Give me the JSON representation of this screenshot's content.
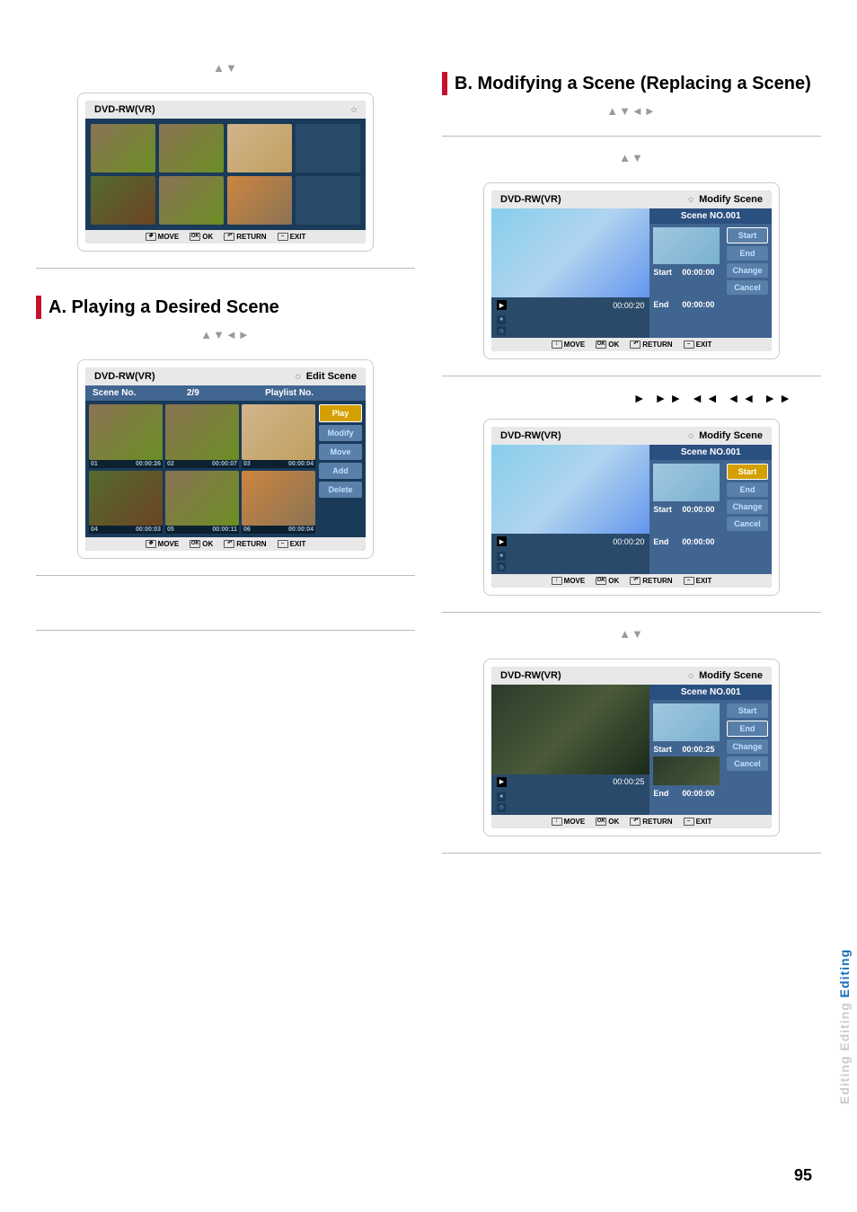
{
  "left": {
    "arrows1": "▲▼",
    "sectionA_title": "A. Playing a Desired Scene",
    "arrows2": "▲▼◄►"
  },
  "right": {
    "sectionB_title": "B. Modifying a Scene (Replacing a Scene)",
    "arrows1": "▲▼◄►",
    "arrows2": "▲▼",
    "transport": "►  ►►  ◄◄ ◄◄  ►►",
    "arrows3": "▲▼"
  },
  "footer_buttons": {
    "move": "MOVE",
    "ok": "OK",
    "return": "RETURN",
    "exit": "EXIT"
  },
  "box1": {
    "title": "DVD-RW(VR)"
  },
  "box2": {
    "title": "DVD-RW(VR)",
    "right_title": "Edit Scene",
    "scene_no_label": "Scene No.",
    "count": "2/9",
    "playlist_label": "Playlist No.",
    "cells": [
      {
        "n": "01",
        "t": "00:00:26"
      },
      {
        "n": "02",
        "t": "00:00:07"
      },
      {
        "n": "03",
        "t": "00:00:04"
      },
      {
        "n": "04",
        "t": "00:00:03"
      },
      {
        "n": "05",
        "t": "00:00:11"
      },
      {
        "n": "06",
        "t": "00:00:04"
      }
    ],
    "actions": [
      "Play",
      "Modify",
      "Move",
      "Add",
      "Delete"
    ]
  },
  "modify": {
    "title": "DVD-RW(VR)",
    "right_title": "Modify Scene",
    "scene_no": "Scene NO.001",
    "start_label": "Start",
    "end_label": "End",
    "buttons": [
      "Start",
      "End",
      "Change",
      "Cancel"
    ]
  },
  "box3": {
    "time_main": "00:00:20",
    "start_t": "00:00:00",
    "end_t": "00:00:00"
  },
  "box4": {
    "time_main": "00:00:20",
    "start_t": "00:00:00",
    "end_t": "00:00:00"
  },
  "box5": {
    "time_main": "00:00:25",
    "start_t": "00:00:25",
    "end_t": "00:00:00"
  },
  "page_number": "95",
  "side_tab": "Editing"
}
